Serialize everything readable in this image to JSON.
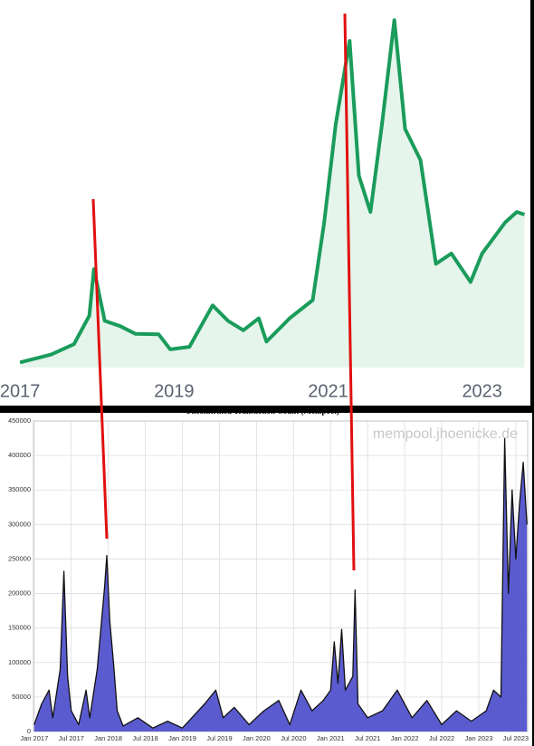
{
  "chart_data": [
    {
      "type": "line",
      "color": "#1a9c5b",
      "area_color": "#e6f5ec",
      "x": [
        2017.0,
        2017.4,
        2017.7,
        2017.9,
        2017.96,
        2018.1,
        2018.3,
        2018.5,
        2018.8,
        2018.95,
        2019.2,
        2019.5,
        2019.7,
        2019.9,
        2020.1,
        2020.2,
        2020.5,
        2020.8,
        2020.95,
        2021.1,
        2021.28,
        2021.4,
        2021.55,
        2021.7,
        2021.86,
        2022.0,
        2022.2,
        2022.4,
        2022.6,
        2022.85,
        2023.0,
        2023.3,
        2023.45,
        2023.55
      ],
      "values": [
        1000,
        2500,
        4500,
        10000,
        19000,
        9000,
        8000,
        6500,
        6400,
        3500,
        4000,
        12000,
        9000,
        7200,
        9500,
        5000,
        9500,
        13000,
        28000,
        47000,
        63000,
        37000,
        30000,
        47000,
        67000,
        46000,
        40000,
        20000,
        22000,
        16500,
        22000,
        28000,
        30000,
        29500
      ],
      "xlim": [
        2016.74,
        2023.65
      ],
      "xticks": [
        2017,
        2019,
        2021,
        2023
      ],
      "ylim": [
        0,
        70000
      ]
    },
    {
      "type": "line",
      "title": "Unconfirmed Transaction Count (Mempool)",
      "annotation": "mempool.jhoenicke.de",
      "color": "#111111",
      "area_color": "#5b5bd0",
      "grid": true,
      "x": [
        2017.0,
        2017.1,
        2017.2,
        2017.25,
        2017.35,
        2017.4,
        2017.45,
        2017.5,
        2017.6,
        2017.7,
        2017.75,
        2017.85,
        2017.9,
        2017.95,
        2017.98,
        2018.02,
        2018.07,
        2018.12,
        2018.2,
        2018.4,
        2018.6,
        2018.8,
        2019.0,
        2019.3,
        2019.45,
        2019.55,
        2019.7,
        2019.9,
        2020.1,
        2020.3,
        2020.45,
        2020.6,
        2020.75,
        2020.9,
        2021.0,
        2021.05,
        2021.1,
        2021.15,
        2021.2,
        2021.3,
        2021.33,
        2021.37,
        2021.5,
        2021.7,
        2021.9,
        2022.1,
        2022.3,
        2022.5,
        2022.7,
        2022.9,
        2023.1,
        2023.2,
        2023.3,
        2023.35,
        2023.4,
        2023.45,
        2023.5,
        2023.55,
        2023.6,
        2023.65
      ],
      "values": [
        10000,
        40000,
        60000,
        20000,
        90000,
        232000,
        80000,
        30000,
        10000,
        60000,
        20000,
        90000,
        150000,
        210000,
        255000,
        160000,
        100000,
        30000,
        8000,
        20000,
        5000,
        15000,
        5000,
        40000,
        60000,
        20000,
        35000,
        10000,
        30000,
        45000,
        10000,
        60000,
        30000,
        45000,
        60000,
        130000,
        70000,
        148000,
        60000,
        80000,
        205000,
        40000,
        20000,
        30000,
        60000,
        20000,
        45000,
        10000,
        30000,
        15000,
        30000,
        60000,
        50000,
        425000,
        200000,
        350000,
        250000,
        330000,
        390000,
        300000
      ],
      "xlim": [
        2016.99,
        2023.66
      ],
      "xticks": [
        {
          "value": 2017,
          "label": "Jan 2017"
        },
        {
          "value": 2017.5,
          "label": "Jul 2017"
        },
        {
          "value": 2018,
          "label": "Jan 2018"
        },
        {
          "value": 2018.5,
          "label": "Jul 2018"
        },
        {
          "value": 2019,
          "label": "Jan 2019"
        },
        {
          "value": 2019.5,
          "label": "Jul 2019"
        },
        {
          "value": 2020,
          "label": "Jan 2020"
        },
        {
          "value": 2020.5,
          "label": "Jul 2020"
        },
        {
          "value": 2021,
          "label": "Jan 2021"
        },
        {
          "value": 2021.5,
          "label": "Jul 2021"
        },
        {
          "value": 2022,
          "label": "Jan 2022"
        },
        {
          "value": 2022.5,
          "label": "Jul 2022"
        },
        {
          "value": 2023,
          "label": "Jan 2023"
        },
        {
          "value": 2023.5,
          "label": "Jul 2023"
        }
      ],
      "ylim": [
        0,
        450000
      ],
      "yticks": [
        0,
        50000,
        100000,
        150000,
        200000,
        250000,
        300000,
        350000,
        400000,
        450000
      ]
    }
  ]
}
